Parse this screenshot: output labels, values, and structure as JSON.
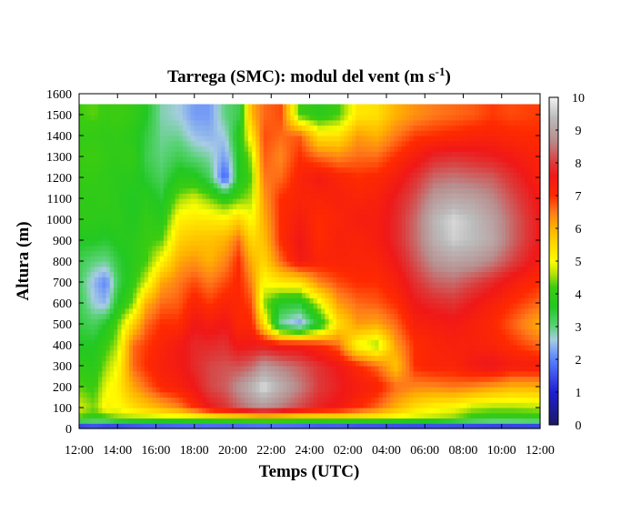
{
  "chart_data": {
    "type": "heatmap",
    "title": "Tarrega (SMC): modul del vent (m s",
    "title_sup": "-1",
    "title_end": ")",
    "xlabel": "Temps (UTC)",
    "ylabel": "Altura (m)",
    "x_ticks": [
      "12:00",
      "14:00",
      "16:00",
      "18:00",
      "20:00",
      "22:00",
      "24:00",
      "02:00",
      "04:00",
      "06:00",
      "08:00",
      "10:00",
      "12:00"
    ],
    "y_ticks": [
      "0",
      "100",
      "200",
      "300",
      "400",
      "500",
      "600",
      "700",
      "800",
      "900",
      "1000",
      "1100",
      "1200",
      "1300",
      "1400",
      "1500",
      "1600"
    ],
    "xlim_hours": [
      0,
      24
    ],
    "ylim": [
      0,
      1600
    ],
    "data_top": 1550,
    "colorbar": {
      "ticks": [
        "0",
        "1",
        "2",
        "3",
        "4",
        "5",
        "6",
        "7",
        "8",
        "9",
        "10"
      ],
      "range": [
        0,
        10
      ],
      "stops": [
        {
          "v": 0,
          "c": "#1a1a66"
        },
        {
          "v": 1,
          "c": "#1e1ed2"
        },
        {
          "v": 2,
          "c": "#5a82ff"
        },
        {
          "v": 2.6,
          "c": "#a7cde3"
        },
        {
          "v": 3,
          "c": "#5cd27a"
        },
        {
          "v": 3.6,
          "c": "#22c822"
        },
        {
          "v": 4.2,
          "c": "#3ccc10"
        },
        {
          "v": 4.6,
          "c": "#b4e10a"
        },
        {
          "v": 5,
          "c": "#ffff00"
        },
        {
          "v": 6,
          "c": "#ffb300"
        },
        {
          "v": 6.5,
          "c": "#ff7a1a"
        },
        {
          "v": 7,
          "c": "#ff2a00"
        },
        {
          "v": 7.6,
          "c": "#f01818"
        },
        {
          "v": 8,
          "c": "#dd3a3a"
        },
        {
          "v": 8.7,
          "c": "#b88e8e"
        },
        {
          "v": 9.4,
          "c": "#bcbcbc"
        },
        {
          "v": 10,
          "c": "#f4f4f4"
        }
      ]
    },
    "profiles": [
      {
        "t": 0,
        "h": [
          0,
          50,
          100,
          200,
          300,
          400,
          500,
          600,
          700,
          800,
          900,
          1000,
          1100,
          1200,
          1300,
          1400,
          1500,
          1550
        ],
        "v": [
          0.5,
          4.2,
          4.8,
          4.3,
          3.9,
          3.6,
          3.4,
          3.3,
          3.2,
          3.3,
          3.6,
          3.9,
          3.9,
          4.0,
          4.1,
          4.0,
          4.2,
          4.2
        ]
      },
      {
        "t": 0.8,
        "h": [
          0,
          50,
          100,
          200,
          300,
          400,
          500,
          600,
          700,
          800,
          900,
          1000,
          1100,
          1200,
          1300,
          1400,
          1500,
          1550
        ],
        "v": [
          0.8,
          3.9,
          4.4,
          4.1,
          3.8,
          3.6,
          3.2,
          2.6,
          2.4,
          3.0,
          3.6,
          3.9,
          3.9,
          4.0,
          4.2,
          4.0,
          4.3,
          4.3
        ]
      },
      {
        "t": 1.4,
        "h": [
          0,
          50,
          100,
          200,
          300,
          400,
          500,
          600,
          700,
          800,
          900,
          1000,
          1100,
          1200,
          1300,
          1400,
          1500,
          1550
        ],
        "v": [
          0.6,
          4.0,
          5.2,
          4.9,
          4.5,
          4.1,
          3.6,
          2.4,
          2.0,
          2.9,
          3.5,
          3.8,
          4.0,
          3.9,
          4.0,
          3.9,
          4.1,
          4.1
        ]
      },
      {
        "t": 2.0,
        "h": [
          0,
          50,
          100,
          200,
          300,
          400,
          500,
          600,
          700,
          800,
          900,
          1000,
          1100,
          1200,
          1300,
          1400,
          1500,
          1550
        ],
        "v": [
          0.5,
          4.4,
          5.0,
          5.2,
          5.0,
          4.6,
          4.3,
          3.6,
          3.2,
          3.4,
          3.7,
          3.9,
          3.8,
          3.8,
          3.9,
          4.0,
          4.2,
          4.2
        ]
      },
      {
        "t": 2.8,
        "h": [
          0,
          50,
          100,
          200,
          300,
          400,
          500,
          600,
          700,
          800,
          900,
          1000,
          1100,
          1200,
          1300,
          1400,
          1500,
          1550
        ],
        "v": [
          0.6,
          4.5,
          5.4,
          6.1,
          6.6,
          6.6,
          5.6,
          4.4,
          4.0,
          3.8,
          3.8,
          3.6,
          3.6,
          3.8,
          4.0,
          3.8,
          4.0,
          4.0
        ]
      },
      {
        "t": 3.5,
        "h": [
          0,
          50,
          100,
          200,
          300,
          400,
          500,
          600,
          700,
          800,
          900,
          1000,
          1100,
          1200,
          1300,
          1400,
          1500,
          1550
        ],
        "v": [
          0.7,
          4.5,
          5.7,
          6.6,
          7.0,
          6.9,
          6.6,
          6.0,
          4.8,
          4.2,
          4.1,
          4.0,
          3.8,
          3.5,
          3.3,
          3.4,
          3.6,
          3.6
        ]
      },
      {
        "t": 4.3,
        "h": [
          0,
          50,
          100,
          200,
          300,
          400,
          500,
          600,
          700,
          800,
          900,
          1000,
          1100,
          1200,
          1300,
          1400,
          1500,
          1550
        ],
        "v": [
          0.7,
          4.6,
          6.0,
          7.1,
          7.3,
          7.2,
          7.0,
          6.6,
          6.1,
          5.1,
          4.3,
          3.8,
          3.5,
          3.2,
          3.0,
          2.9,
          2.8,
          2.8
        ]
      },
      {
        "t": 5.2,
        "h": [
          0,
          50,
          100,
          200,
          300,
          400,
          500,
          600,
          700,
          800,
          900,
          1000,
          1100,
          1200,
          1300,
          1400,
          1500,
          1550
        ],
        "v": [
          0.8,
          4.6,
          6.4,
          7.3,
          7.5,
          7.5,
          7.0,
          6.7,
          6.5,
          6.1,
          5.6,
          5.2,
          4.5,
          3.8,
          3.3,
          2.9,
          2.6,
          2.6
        ]
      },
      {
        "t": 6.0,
        "h": [
          0,
          50,
          100,
          200,
          300,
          400,
          500,
          600,
          700,
          800,
          900,
          1000,
          1100,
          1200,
          1300,
          1400,
          1500,
          1550
        ],
        "v": [
          0.8,
          4.7,
          7.0,
          7.6,
          7.8,
          7.8,
          7.6,
          7.2,
          6.8,
          6.3,
          5.8,
          5.3,
          4.8,
          3.8,
          3.0,
          2.5,
          2.2,
          2.2
        ]
      },
      {
        "t": 6.8,
        "h": [
          0,
          50,
          100,
          200,
          300,
          400,
          500,
          600,
          700,
          800,
          900,
          1000,
          1100,
          1200,
          1300,
          1400,
          1500,
          1550
        ],
        "v": [
          0.8,
          4.8,
          7.6,
          8.1,
          8.1,
          7.8,
          7.4,
          6.9,
          6.5,
          6.0,
          5.8,
          5.3,
          4.4,
          3.2,
          2.8,
          2.4,
          2.2,
          2.2
        ]
      },
      {
        "t": 7.6,
        "h": [
          0,
          50,
          100,
          200,
          300,
          400,
          500,
          600,
          700,
          800,
          900,
          1000,
          1100,
          1200,
          1300,
          1400,
          1500,
          1550
        ],
        "v": [
          0.7,
          5.0,
          7.9,
          8.3,
          8.2,
          7.9,
          7.6,
          7.2,
          6.8,
          6.4,
          6.0,
          5.2,
          3.9,
          1.6,
          2.2,
          2.6,
          3.0,
          3.0
        ]
      },
      {
        "t": 8.3,
        "h": [
          0,
          50,
          100,
          200,
          300,
          400,
          500,
          600,
          700,
          800,
          900,
          1000,
          1100,
          1200,
          1300,
          1400,
          1500,
          1550
        ],
        "v": [
          0.7,
          5.0,
          8.3,
          8.8,
          8.2,
          7.5,
          7.1,
          7.1,
          7.1,
          7.0,
          6.6,
          5.6,
          4.3,
          3.6,
          3.6,
          3.8,
          3.3,
          3.3
        ]
      },
      {
        "t": 9.0,
        "h": [
          0,
          50,
          100,
          200,
          300,
          400,
          500,
          600,
          700,
          800,
          900,
          1000,
          1100,
          1200,
          1300,
          1400,
          1500,
          1550
        ],
        "v": [
          0.7,
          5.2,
          8.6,
          9.3,
          8.4,
          7.6,
          7.1,
          6.8,
          6.4,
          6.0,
          5.5,
          5.0,
          4.6,
          4.3,
          4.6,
          5.3,
          6.0,
          6.0
        ]
      },
      {
        "t": 9.6,
        "h": [
          0,
          50,
          100,
          200,
          300,
          400,
          500,
          600,
          700,
          800,
          900,
          1000,
          1100,
          1200,
          1300,
          1400,
          1500,
          1550
        ],
        "v": [
          0.7,
          5.3,
          8.8,
          9.8,
          8.9,
          7.6,
          5.5,
          4.5,
          5.0,
          5.5,
          5.8,
          6.0,
          6.2,
          6.5,
          6.7,
          6.8,
          6.6,
          6.6
        ]
      },
      {
        "t": 10.5,
        "h": [
          0,
          50,
          100,
          200,
          300,
          400,
          500,
          600,
          700,
          800,
          900,
          1000,
          1100,
          1200,
          1300,
          1400,
          1500,
          1550
        ],
        "v": [
          0.7,
          5.2,
          8.5,
          9.2,
          8.6,
          7.4,
          2.8,
          3.6,
          5.3,
          6.6,
          7.0,
          7.0,
          7.0,
          6.6,
          6.4,
          6.6,
          6.8,
          6.8
        ]
      },
      {
        "t": 11.5,
        "h": [
          0,
          50,
          100,
          200,
          300,
          400,
          500,
          600,
          700,
          800,
          900,
          1000,
          1100,
          1200,
          1300,
          1400,
          1500,
          1550
        ],
        "v": [
          0.7,
          5.0,
          8.1,
          8.6,
          8.3,
          7.4,
          2.2,
          3.5,
          5.4,
          7.5,
          7.6,
          7.4,
          7.2,
          7.2,
          7.0,
          6.7,
          4.2,
          4.2
        ]
      },
      {
        "t": 12.5,
        "h": [
          0,
          50,
          100,
          200,
          300,
          400,
          500,
          600,
          700,
          800,
          900,
          1000,
          1100,
          1200,
          1300,
          1400,
          1500,
          1550
        ],
        "v": [
          0.5,
          5.0,
          7.7,
          8.0,
          7.9,
          7.1,
          3.6,
          4.8,
          6.4,
          7.2,
          7.0,
          7.0,
          7.2,
          7.5,
          6.6,
          5.4,
          3.8,
          3.8
        ]
      },
      {
        "t": 13.5,
        "h": [
          0,
          50,
          100,
          200,
          300,
          400,
          500,
          600,
          700,
          800,
          900,
          1000,
          1100,
          1200,
          1300,
          1400,
          1500,
          1550
        ],
        "v": [
          0.5,
          5.1,
          7.5,
          7.7,
          7.6,
          6.6,
          5.4,
          6.2,
          6.8,
          7.2,
          7.3,
          7.2,
          7.3,
          7.2,
          6.4,
          5.4,
          4.2,
          4.2
        ]
      },
      {
        "t": 14.5,
        "h": [
          0,
          50,
          100,
          200,
          300,
          400,
          500,
          600,
          700,
          800,
          900,
          1000,
          1100,
          1200,
          1300,
          1400,
          1500,
          1550
        ],
        "v": [
          0.4,
          5.0,
          7.1,
          7.4,
          7.1,
          5.0,
          6.2,
          6.6,
          7.0,
          7.2,
          7.2,
          7.4,
          7.2,
          7.0,
          6.6,
          6.2,
          5.3,
          5.3
        ]
      },
      {
        "t": 15.5,
        "h": [
          0,
          50,
          100,
          200,
          300,
          400,
          500,
          600,
          700,
          800,
          900,
          1000,
          1100,
          1200,
          1300,
          1400,
          1500,
          1550
        ],
        "v": [
          0.4,
          5.0,
          6.6,
          7.2,
          6.6,
          4.5,
          6.1,
          6.7,
          7.0,
          7.2,
          7.4,
          7.4,
          7.3,
          7.1,
          6.6,
          6.0,
          5.4,
          5.4
        ]
      },
      {
        "t": 16.5,
        "h": [
          0,
          50,
          100,
          200,
          300,
          400,
          500,
          600,
          700,
          800,
          900,
          1000,
          1100,
          1200,
          1300,
          1400,
          1500,
          1550
        ],
        "v": [
          0.4,
          4.8,
          6.0,
          6.6,
          5.8,
          6.2,
          6.6,
          7.0,
          7.3,
          7.6,
          7.8,
          7.8,
          7.7,
          7.4,
          7.0,
          6.5,
          6.0,
          6.0
        ]
      },
      {
        "t": 17.5,
        "h": [
          0,
          50,
          100,
          200,
          300,
          400,
          500,
          600,
          700,
          800,
          900,
          1000,
          1100,
          1200,
          1300,
          1400,
          1500,
          1550
        ],
        "v": [
          0.4,
          4.7,
          5.4,
          6.4,
          7.0,
          7.0,
          7.3,
          7.6,
          7.9,
          8.2,
          8.4,
          8.4,
          8.2,
          7.9,
          7.4,
          6.9,
          6.3,
          6.3
        ]
      },
      {
        "t": 18.5,
        "h": [
          0,
          50,
          100,
          200,
          300,
          400,
          500,
          600,
          700,
          800,
          900,
          1000,
          1100,
          1200,
          1300,
          1400,
          1500,
          1550
        ],
        "v": [
          0.5,
          4.6,
          5.1,
          6.4,
          7.2,
          7.2,
          7.4,
          7.8,
          8.3,
          8.8,
          9.2,
          9.3,
          8.9,
          8.4,
          7.8,
          7.0,
          6.5,
          6.5
        ]
      },
      {
        "t": 19.5,
        "h": [
          0,
          50,
          100,
          200,
          300,
          400,
          500,
          600,
          700,
          800,
          900,
          1000,
          1100,
          1200,
          1300,
          1400,
          1500,
          1550
        ],
        "v": [
          0.5,
          4.4,
          5.0,
          6.5,
          7.2,
          7.3,
          7.5,
          7.9,
          8.4,
          9.0,
          9.6,
          9.7,
          9.1,
          8.5,
          7.9,
          7.1,
          6.6,
          6.6
        ]
      },
      {
        "t": 20.5,
        "h": [
          0,
          50,
          100,
          200,
          300,
          400,
          500,
          600,
          700,
          800,
          900,
          1000,
          1100,
          1200,
          1300,
          1400,
          1500,
          1550
        ],
        "v": [
          0.6,
          4.0,
          4.6,
          6.4,
          7.5,
          7.3,
          7.3,
          7.6,
          8.1,
          8.9,
          9.4,
          9.4,
          9.0,
          8.4,
          7.8,
          7.2,
          6.7,
          6.7
        ]
      },
      {
        "t": 21.5,
        "h": [
          0,
          50,
          100,
          200,
          300,
          400,
          500,
          600,
          700,
          800,
          900,
          1000,
          1100,
          1200,
          1300,
          1400,
          1500,
          1550
        ],
        "v": [
          0.6,
          3.8,
          4.5,
          6.2,
          7.7,
          7.2,
          7.1,
          7.3,
          7.8,
          8.6,
          9.1,
          9.0,
          8.7,
          8.3,
          7.7,
          7.2,
          6.9,
          6.9
        ]
      },
      {
        "t": 22.5,
        "h": [
          0,
          50,
          100,
          200,
          300,
          400,
          500,
          600,
          700,
          800,
          900,
          1000,
          1100,
          1200,
          1300,
          1400,
          1500,
          1550
        ],
        "v": [
          0.6,
          3.8,
          4.5,
          6.0,
          7.4,
          7.0,
          6.7,
          7.0,
          7.4,
          8.1,
          8.4,
          8.4,
          8.2,
          7.9,
          7.5,
          7.1,
          6.8,
          6.8
        ]
      },
      {
        "t": 24.0,
        "h": [
          0,
          50,
          100,
          200,
          300,
          400,
          500,
          600,
          700,
          800,
          900,
          1000,
          1100,
          1200,
          1300,
          1400,
          1500,
          1550
        ],
        "v": [
          0.6,
          3.9,
          4.6,
          6.0,
          7.4,
          6.6,
          6.0,
          6.6,
          7.0,
          7.4,
          7.6,
          7.6,
          7.5,
          7.3,
          7.2,
          7.0,
          6.9,
          6.9
        ]
      }
    ]
  }
}
